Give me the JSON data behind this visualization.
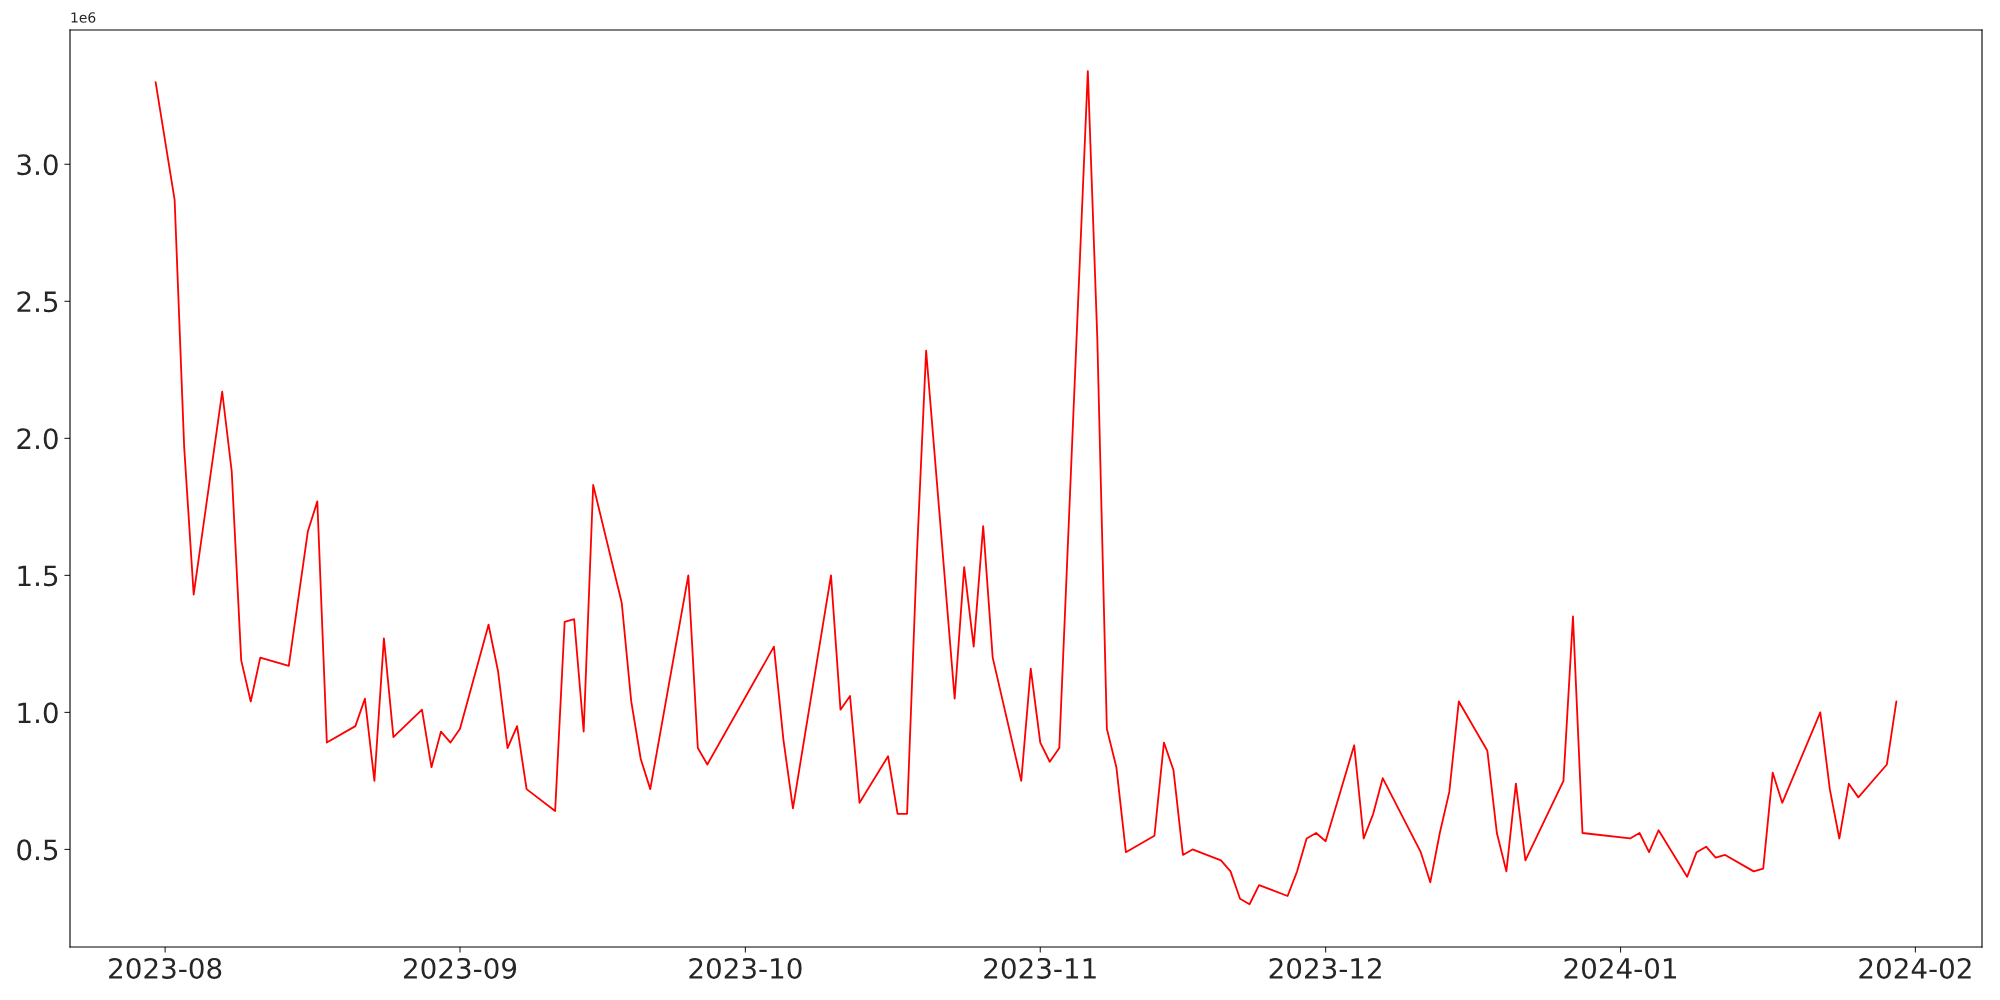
{
  "chart_data": {
    "type": "line",
    "x": [
      "2023-07-31",
      "2023-08-02",
      "2023-08-03",
      "2023-08-04",
      "2023-08-07",
      "2023-08-08",
      "2023-08-09",
      "2023-08-10",
      "2023-08-11",
      "2023-08-14",
      "2023-08-16",
      "2023-08-17",
      "2023-08-18",
      "2023-08-21",
      "2023-08-22",
      "2023-08-23",
      "2023-08-24",
      "2023-08-25",
      "2023-08-28",
      "2023-08-29",
      "2023-08-30",
      "2023-08-31",
      "2023-09-01",
      "2023-09-04",
      "2023-09-05",
      "2023-09-06",
      "2023-09-07",
      "2023-09-08",
      "2023-09-11",
      "2023-09-12",
      "2023-09-13",
      "2023-09-14",
      "2023-09-15",
      "2023-09-18",
      "2023-09-19",
      "2023-09-20",
      "2023-09-21",
      "2023-09-25",
      "2023-09-26",
      "2023-09-27",
      "2023-10-04",
      "2023-10-05",
      "2023-10-06",
      "2023-10-10",
      "2023-10-11",
      "2023-10-12",
      "2023-10-13",
      "2023-10-16",
      "2023-10-17",
      "2023-10-18",
      "2023-10-19",
      "2023-10-20",
      "2023-10-23",
      "2023-10-24",
      "2023-10-25",
      "2023-10-26",
      "2023-10-27",
      "2023-10-30",
      "2023-10-31",
      "2023-11-01",
      "2023-11-02",
      "2023-11-03",
      "2023-11-06",
      "2023-11-07",
      "2023-11-08",
      "2023-11-09",
      "2023-11-10",
      "2023-11-13",
      "2023-11-14",
      "2023-11-15",
      "2023-11-16",
      "2023-11-17",
      "2023-11-20",
      "2023-11-21",
      "2023-11-22",
      "2023-11-23",
      "2023-11-24",
      "2023-11-27",
      "2023-11-28",
      "2023-11-29",
      "2023-11-30",
      "2023-12-01",
      "2023-12-04",
      "2023-12-05",
      "2023-12-06",
      "2023-12-07",
      "2023-12-11",
      "2023-12-12",
      "2023-12-13",
      "2023-12-14",
      "2023-12-15",
      "2023-12-18",
      "2023-12-19",
      "2023-12-20",
      "2023-12-21",
      "2023-12-22",
      "2023-12-26",
      "2023-12-27",
      "2023-12-28",
      "2024-01-02",
      "2024-01-03",
      "2024-01-04",
      "2024-01-05",
      "2024-01-08",
      "2024-01-09",
      "2024-01-10",
      "2024-01-11",
      "2024-01-12",
      "2024-01-15",
      "2024-01-16",
      "2024-01-17",
      "2024-01-18",
      "2024-01-22",
      "2024-01-23",
      "2024-01-24",
      "2024-01-25",
      "2024-01-26",
      "2024-01-29",
      "2024-01-30"
    ],
    "series": [
      {
        "color": "#ff0000",
        "values": [
          3.3,
          2.87,
          1.97,
          1.43,
          2.17,
          1.88,
          1.19,
          1.04,
          1.2,
          1.17,
          1.66,
          1.77,
          0.89,
          0.95,
          1.05,
          0.75,
          1.27,
          0.91,
          1.01,
          0.8,
          0.93,
          0.89,
          0.94,
          1.32,
          1.15,
          0.87,
          0.95,
          0.72,
          0.64,
          1.33,
          1.34,
          0.93,
          1.83,
          1.4,
          1.04,
          0.83,
          0.72,
          1.5,
          0.87,
          0.81,
          1.24,
          0.9,
          0.65,
          1.5,
          1.01,
          1.06,
          0.67,
          0.84,
          0.63,
          0.63,
          1.55,
          2.32,
          1.05,
          1.53,
          1.24,
          1.68,
          1.2,
          0.75,
          1.16,
          0.89,
          0.82,
          0.87,
          3.34,
          2.36,
          0.94,
          0.8,
          0.49,
          0.55,
          0.89,
          0.79,
          0.48,
          0.5,
          0.46,
          0.42,
          0.32,
          0.3,
          0.37,
          0.33,
          0.42,
          0.54,
          0.56,
          0.53,
          0.88,
          0.54,
          0.63,
          0.76,
          0.49,
          0.38,
          0.56,
          0.71,
          1.04,
          0.86,
          0.56,
          0.42,
          0.74,
          0.46,
          0.75,
          1.35,
          0.56,
          0.54,
          0.56,
          0.49,
          0.57,
          0.4,
          0.49,
          0.51,
          0.47,
          0.48,
          0.42,
          0.43,
          0.78,
          0.67,
          1.0,
          0.72,
          0.54,
          0.74,
          0.69,
          0.81,
          1.04
        ]
      }
    ],
    "xlim": [
      "2023-07-22",
      "2024-02-08"
    ],
    "xticks": [
      {
        "value": "2023-08-01",
        "label": "2023-08"
      },
      {
        "value": "2023-09-01",
        "label": "2023-09"
      },
      {
        "value": "2023-10-01",
        "label": "2023-10"
      },
      {
        "value": "2023-11-01",
        "label": "2023-11"
      },
      {
        "value": "2023-12-01",
        "label": "2023-12"
      },
      {
        "value": "2024-01-01",
        "label": "2024-01"
      },
      {
        "value": "2024-02-01",
        "label": "2024-02"
      }
    ],
    "ylim": [
      0.144,
      3.49
    ],
    "yticks": [
      0.5,
      {
        "value": 1,
        "label": "1.0"
      },
      1.5,
      {
        "value": 2,
        "label": "2.0"
      },
      2.5,
      {
        "value": 3,
        "label": "3.0"
      }
    ],
    "annotations": [
      "1e6"
    ],
    "grid": false,
    "marker": "none",
    "line_style": "solid"
  }
}
